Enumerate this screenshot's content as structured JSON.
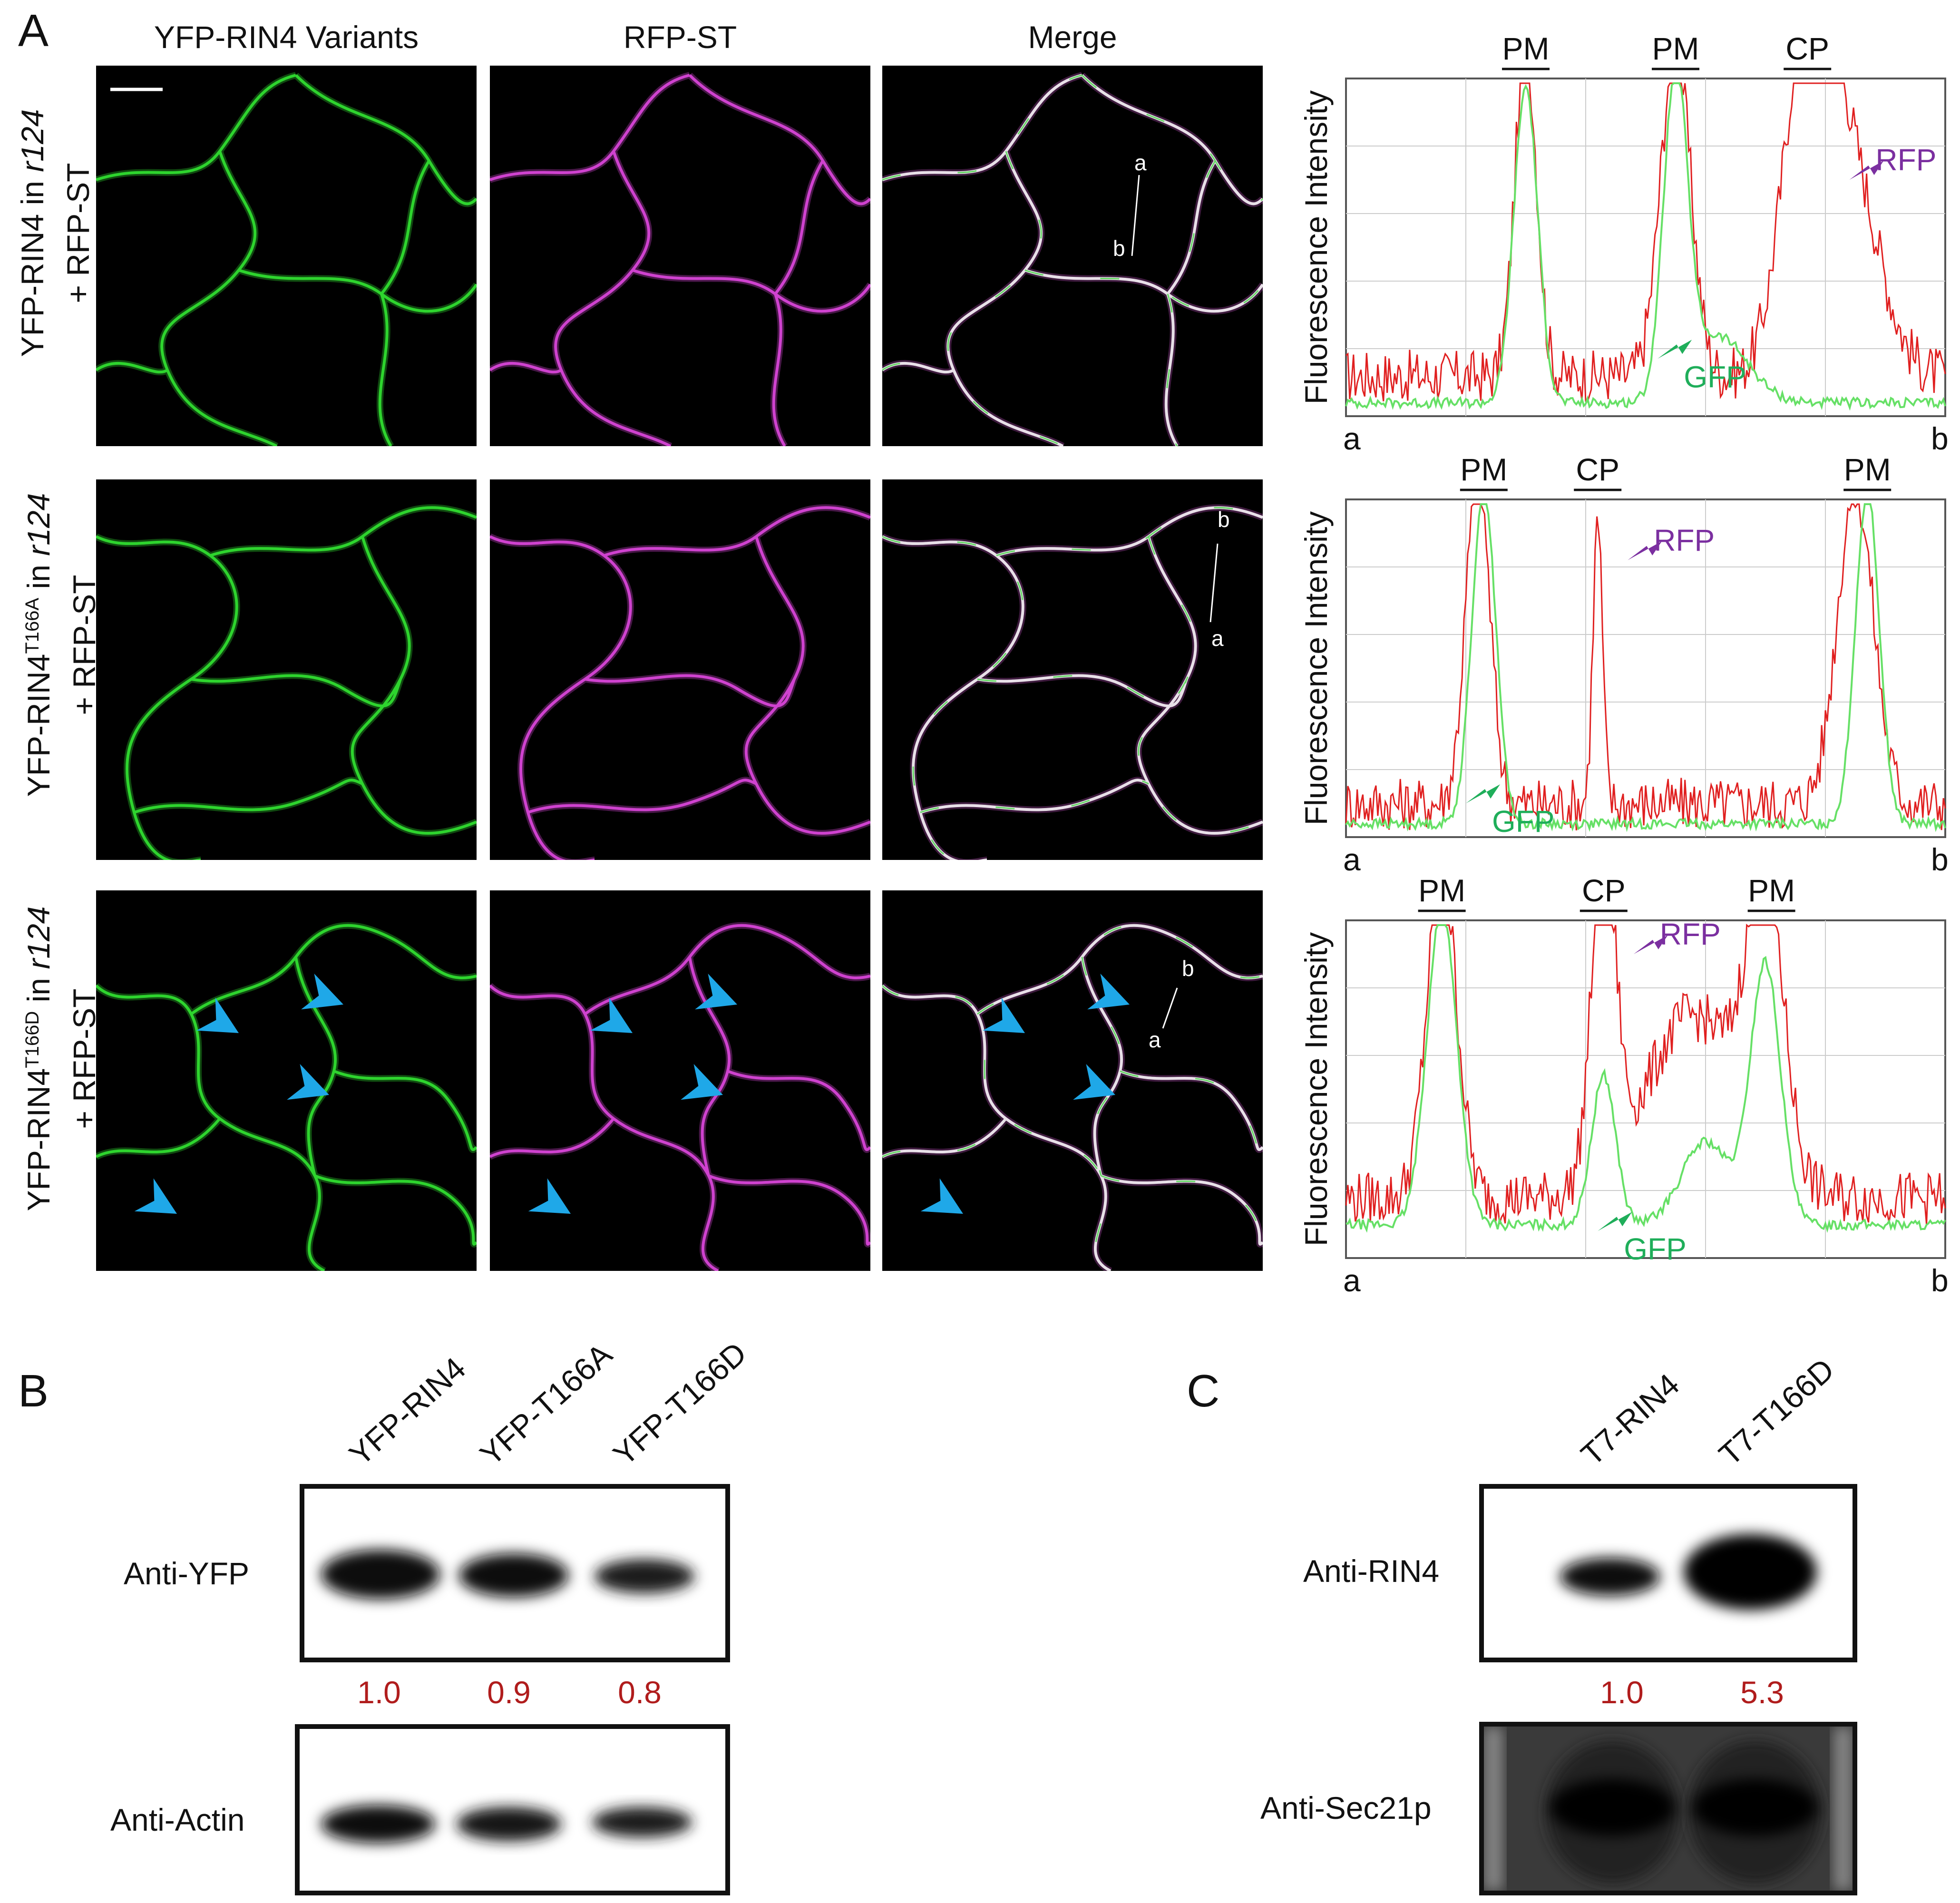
{
  "panel_labels": {
    "a": "A",
    "b": "B",
    "c": "C"
  },
  "microscopy": {
    "col_headers": [
      "YFP-RIN4 Variants",
      "RFP-ST",
      "Merge"
    ],
    "rows": [
      {
        "label_line1_pre": "YFP-RIN4 in ",
        "label_line1_ital": "r124",
        "label_line1_sup": "",
        "label_line2": "+ RFP-ST"
      },
      {
        "label_line1_pre": "YFP-RIN4",
        "label_line1_sup": "T166A",
        "label_line1_post": " in ",
        "label_line1_ital": "r124",
        "label_line2": "+ RFP-ST"
      },
      {
        "label_line1_pre": "YFP-RIN4",
        "label_line1_sup": "T166D",
        "label_line1_post": " in ",
        "label_line1_ital": "r124",
        "label_line2": "+ RFP-ST"
      }
    ],
    "linescan_ends": {
      "a": "a",
      "b": "b"
    },
    "colors": {
      "green": "#2bd52b",
      "magenta": "#d447d4",
      "arrowhead": "#1fa8e8"
    }
  },
  "chart_data": [
    {
      "type": "line",
      "ylabel": "Fluorescence  Intensity",
      "x_start_label": "a",
      "x_end_label": "b",
      "annotations": [
        {
          "text": "PM",
          "at": 0.3
        },
        {
          "text": "PM",
          "at": 0.55
        },
        {
          "text": "CP",
          "at": 0.77
        }
      ],
      "arrows": [
        {
          "text": "RFP",
          "color": "#7b2fa0",
          "series": "RFP"
        },
        {
          "text": "GFP",
          "color": "#1fae5a",
          "series": "GFP"
        }
      ],
      "series": [
        {
          "name": "RFP",
          "color": "#e02020",
          "peaks": [
            [
              0.3,
              1.0,
              0.018
            ],
            [
              0.55,
              1.0,
              0.025
            ],
            [
              0.77,
              0.97,
              0.04
            ],
            [
              0.84,
              0.6,
              0.05
            ]
          ],
          "baseline": 0.12
        },
        {
          "name": "GFP",
          "color": "#66e066",
          "peaks": [
            [
              0.3,
              0.95,
              0.02
            ],
            [
              0.55,
              0.95,
              0.02
            ],
            [
              0.62,
              0.2,
              0.05
            ]
          ],
          "baseline": 0.04
        }
      ]
    },
    {
      "type": "line",
      "ylabel": "Fluorescence  Intensity",
      "x_start_label": "a",
      "x_end_label": "b",
      "annotations": [
        {
          "text": "PM",
          "at": 0.23
        },
        {
          "text": "CP",
          "at": 0.42
        },
        {
          "text": "PM",
          "at": 0.87
        }
      ],
      "arrows": [
        {
          "text": "RFP",
          "color": "#7b2fa0",
          "series": "RFP"
        },
        {
          "text": "GFP",
          "color": "#1fae5a",
          "series": "GFP"
        }
      ],
      "series": [
        {
          "name": "RFP",
          "color": "#e02020",
          "peaks": [
            [
              0.22,
              1.0,
              0.02
            ],
            [
              0.42,
              0.85,
              0.008
            ],
            [
              0.85,
              0.95,
              0.03
            ]
          ],
          "baseline": 0.1
        },
        {
          "name": "GFP",
          "color": "#66e066",
          "peaks": [
            [
              0.23,
              1.0,
              0.02
            ],
            [
              0.87,
              1.0,
              0.02
            ]
          ],
          "baseline": 0.04
        }
      ]
    },
    {
      "type": "line",
      "ylabel": "Fluorescence  Intensity",
      "x_start_label": "a",
      "x_end_label": "b",
      "annotations": [
        {
          "text": "PM",
          "at": 0.16
        },
        {
          "text": "CP",
          "at": 0.43
        },
        {
          "text": "PM",
          "at": 0.71
        }
      ],
      "arrows": [
        {
          "text": "RFP",
          "color": "#7b2fa0",
          "series": "RFP"
        },
        {
          "text": "GFP",
          "color": "#1fae5a",
          "series": "GFP"
        }
      ],
      "series": [
        {
          "name": "RFP",
          "color": "#e02020",
          "peaks": [
            [
              0.16,
              0.98,
              0.025
            ],
            [
              0.43,
              1.0,
              0.02
            ],
            [
              0.58,
              0.55,
              0.08
            ],
            [
              0.7,
              0.85,
              0.03
            ]
          ],
          "baseline": 0.18
        },
        {
          "name": "GFP",
          "color": "#66e066",
          "peaks": [
            [
              0.16,
              0.95,
              0.025
            ],
            [
              0.43,
              0.45,
              0.02
            ],
            [
              0.7,
              0.78,
              0.025
            ],
            [
              0.6,
              0.25,
              0.04
            ]
          ],
          "baseline": 0.1
        }
      ]
    }
  ],
  "blot_b": {
    "lanes": [
      "YFP-RIN4",
      "YFP-T166A",
      "YFP-T166D"
    ],
    "top_label": "Anti-YFP",
    "bottom_label": "Anti-Actin",
    "quant": [
      "1.0",
      "0.9",
      "0.8"
    ],
    "band_intensity": [
      1.0,
      0.9,
      0.8
    ]
  },
  "blot_c": {
    "lanes": [
      "T7-RIN4",
      "T7-T166D"
    ],
    "top_label": "Anti-RIN4",
    "bottom_label": "Anti-Sec21p",
    "quant": [
      "1.0",
      "5.3"
    ],
    "band_intensity": [
      1.0,
      5.3
    ]
  }
}
